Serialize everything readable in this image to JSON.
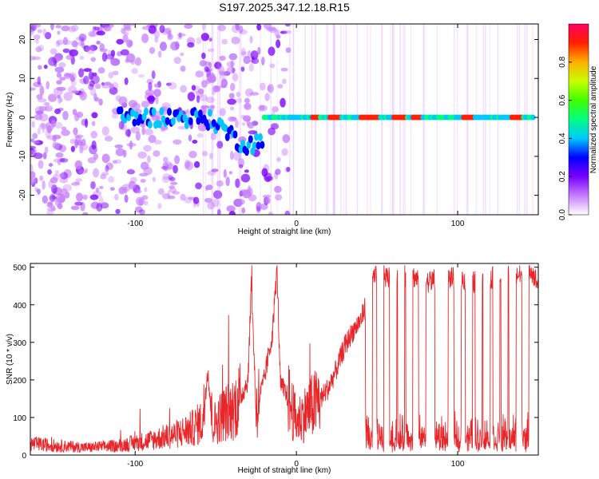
{
  "figure_title": "S197.2025.347.12.18.R15",
  "chart_data": [
    {
      "id": "spectrogram",
      "type": "heatmap",
      "title": "S197.2025.347.12.18.R15",
      "xlabel": "Height of straight line (km)",
      "ylabel": "Frequency (Hz)",
      "xlim": [
        -165,
        150
      ],
      "ylim": [
        -25,
        24
      ],
      "xticks": [
        -100,
        0,
        100
      ],
      "xtick_labels": [
        "-100",
        "0",
        "100"
      ],
      "yticks": [
        -20,
        -10,
        0,
        10,
        20
      ],
      "ytick_labels": [
        "-20",
        "-10",
        "0",
        "10",
        "20"
      ],
      "colorbar": {
        "label": "Normalized spectral amplitude",
        "range": [
          0.0,
          1.0
        ],
        "ticks": [
          0.0,
          0.2,
          0.4,
          0.6,
          0.8
        ],
        "tick_labels": [
          "0.0",
          "0.2",
          "0.4",
          "0.6",
          "0.8"
        ],
        "colors": [
          "#ffffff",
          "#c77dff",
          "#7a00ff",
          "#0000ff",
          "#00c8ff",
          "#00ff80",
          "#40ff00",
          "#c8ff00",
          "#ffb000",
          "#ff2000",
          "#ff0060"
        ]
      },
      "features": {
        "noise_region_x": [
          -165,
          -20
        ],
        "carrier_track_x": [
          -20,
          150
        ],
        "carrier_frequency_hz": 0,
        "dip_center_x": -30,
        "dip_frequency_hz": -7,
        "high_amplitude_segments_x": [
          [
            10,
            14
          ],
          [
            20,
            28
          ],
          [
            40,
            52
          ],
          [
            60,
            68
          ],
          [
            72,
            78
          ],
          [
            103,
            110
          ],
          [
            133,
            140
          ]
        ]
      }
    },
    {
      "id": "snr",
      "type": "line",
      "xlabel": "Height of straight line (km)",
      "ylabel": "SNR (10 * v/v)",
      "xlim": [
        -165,
        150
      ],
      "ylim": [
        0,
        510
      ],
      "xticks": [
        -100,
        0,
        100
      ],
      "xtick_labels": [
        "-100",
        "0",
        "100"
      ],
      "yticks": [
        0,
        100,
        200,
        300,
        400,
        500
      ],
      "ytick_labels": [
        "0",
        "100",
        "200",
        "300",
        "400",
        "500"
      ],
      "line_color": "#e8262a",
      "series": [
        {
          "name": "SNR",
          "x": [
            -165,
            -150,
            -130,
            -110,
            -90,
            -75,
            -65,
            -58,
            -55,
            -52,
            -45,
            -40,
            -35,
            -30,
            -28,
            -25,
            -20,
            -15,
            -12,
            -10,
            -5,
            0,
            5,
            10,
            15,
            20,
            25,
            30,
            35,
            40,
            43,
            45,
            50,
            60,
            70,
            80,
            90,
            100,
            110,
            120,
            130,
            140,
            145,
            150
          ],
          "y": [
            30,
            25,
            20,
            25,
            40,
            55,
            70,
            90,
            230,
            80,
            110,
            120,
            150,
            200,
            460,
            120,
            200,
            320,
            500,
            190,
            150,
            90,
            110,
            130,
            150,
            180,
            230,
            290,
            330,
            360,
            400,
            460,
            480,
            470,
            480,
            460,
            470,
            470,
            460,
            470,
            480,
            480,
            500,
            450
          ]
        }
      ],
      "dropouts_x": [
        45,
        52,
        60,
        65,
        70,
        78,
        88,
        92,
        100,
        107,
        113,
        118,
        124,
        129,
        134,
        142
      ]
    }
  ]
}
